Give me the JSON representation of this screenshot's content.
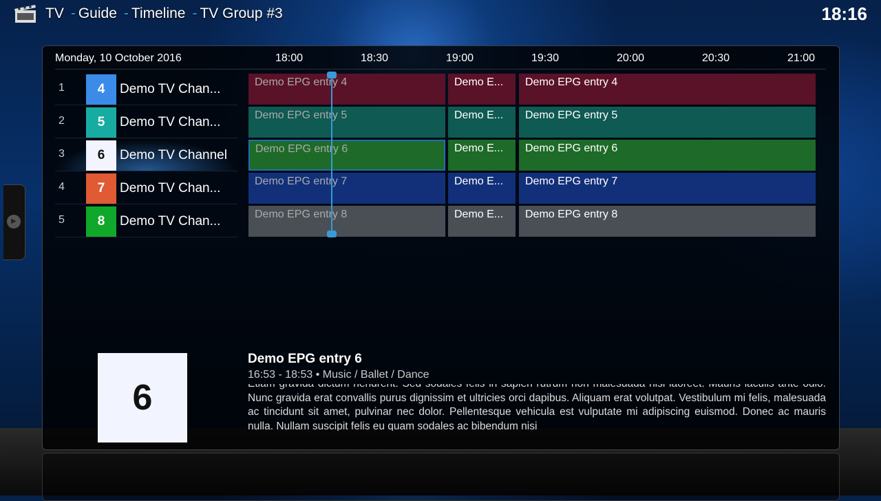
{
  "header": {
    "icon": "clapperboard-icon",
    "crumbs": [
      "TV",
      "Guide",
      "Timeline",
      "TV Group #3"
    ],
    "clock": "18:16"
  },
  "guide": {
    "date": "Monday, 10 October 2016",
    "times": [
      "18:00",
      "18:30",
      "19:00",
      "19:30",
      "20:00",
      "20:30",
      "21:00"
    ],
    "channels": [
      {
        "index": "1",
        "logo": "4",
        "name": "Demo TV Chan...",
        "color": "#3a8ce8",
        "logo_text_color": "#ffffff",
        "entry_color": "#5a1228",
        "entries": [
          "Demo EPG entry 4",
          "Demo E...",
          "Demo EPG entry 4"
        ]
      },
      {
        "index": "2",
        "logo": "5",
        "name": "Demo TV Chan...",
        "color": "#17aca2",
        "logo_text_color": "#ffffff",
        "entry_color": "#0f5a52",
        "entries": [
          "Demo EPG entry 5",
          "Demo E...",
          "Demo EPG entry 5"
        ]
      },
      {
        "index": "3",
        "logo": "6",
        "name": "Demo TV Channel",
        "color": "#f2f4ff",
        "logo_text_color": "#111111",
        "entry_color": "#1e6a28",
        "entries": [
          "Demo EPG entry 6",
          "Demo E...",
          "Demo EPG entry 6"
        ]
      },
      {
        "index": "4",
        "logo": "7",
        "name": "Demo TV Chan...",
        "color": "#e05a33",
        "logo_text_color": "#ffffff",
        "entry_color": "#12307a",
        "entries": [
          "Demo EPG entry 7",
          "Demo E...",
          "Demo EPG entry 7"
        ]
      },
      {
        "index": "5",
        "logo": "8",
        "name": "Demo TV Chan...",
        "color": "#10a82a",
        "logo_text_color": "#ffffff",
        "entry_color": "#4a4f56",
        "entries": [
          "Demo EPG entry 8",
          "Demo E...",
          "Demo EPG entry 8"
        ]
      }
    ],
    "selected_row": 2
  },
  "info": {
    "thumb": "6",
    "title": "Demo EPG entry 6",
    "meta": "16:53 - 18:53 • Music / Ballet / Dance",
    "description": "Etiam gravida dictum hendrerit. Sed sodales felis in sapien rutrum non malesuada nisl laoreet. Mauris iaculis ante odio. Nunc gravida erat convallis purus dignissim et ultricies orci dapibus. Aliquam erat volutpat. Vestibulum mi felis, malesuada ac tincidunt sit amet, pulvinar nec dolor. Pellentesque vehicula est vulputate mi adipiscing euismod. Donec ac mauris nulla. Nullam suscipit felis eu quam sodales ac bibendum nisi"
  }
}
